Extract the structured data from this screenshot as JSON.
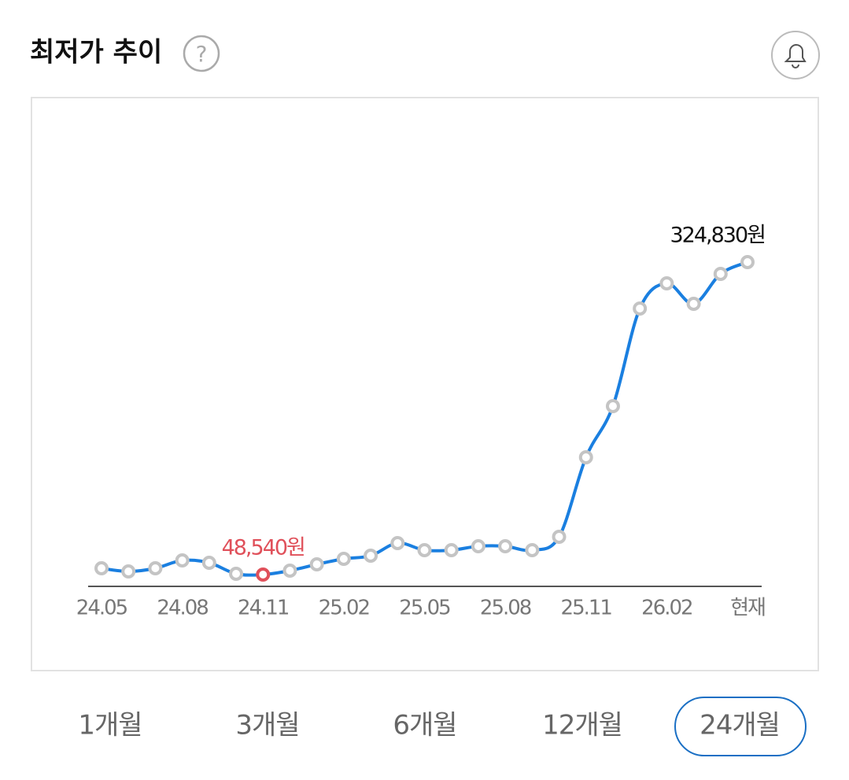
{
  "header": {
    "title": "최저가 추이"
  },
  "chart_data": {
    "type": "line",
    "categories": [
      "24.05",
      null,
      null,
      "24.08",
      null,
      null,
      "24.11",
      null,
      null,
      "25.02",
      null,
      null,
      "25.05",
      null,
      null,
      "25.08",
      null,
      null,
      "25.11",
      null,
      null,
      "26.02",
      null,
      null,
      "현재"
    ],
    "values": [
      54100,
      51300,
      54100,
      61070,
      58980,
      49240,
      48540,
      52020,
      57590,
      62460,
      65240,
      76380,
      70120,
      70120,
      73600,
      73600,
      70120,
      81950,
      152240,
      197480,
      283790,
      306060,
      287960,
      314410,
      324830
    ],
    "value_labels": [
      null,
      null,
      null,
      null,
      null,
      null,
      "48,540원",
      null,
      null,
      null,
      null,
      null,
      null,
      null,
      null,
      null,
      null,
      null,
      null,
      null,
      null,
      null,
      null,
      null,
      "324,830원"
    ],
    "color": "#1a7fe0",
    "low_color": "#e0505a"
  },
  "tabs": {
    "options": [
      "1개월",
      "3개월",
      "6개월",
      "12개월",
      "24개월"
    ],
    "selected": 4
  }
}
